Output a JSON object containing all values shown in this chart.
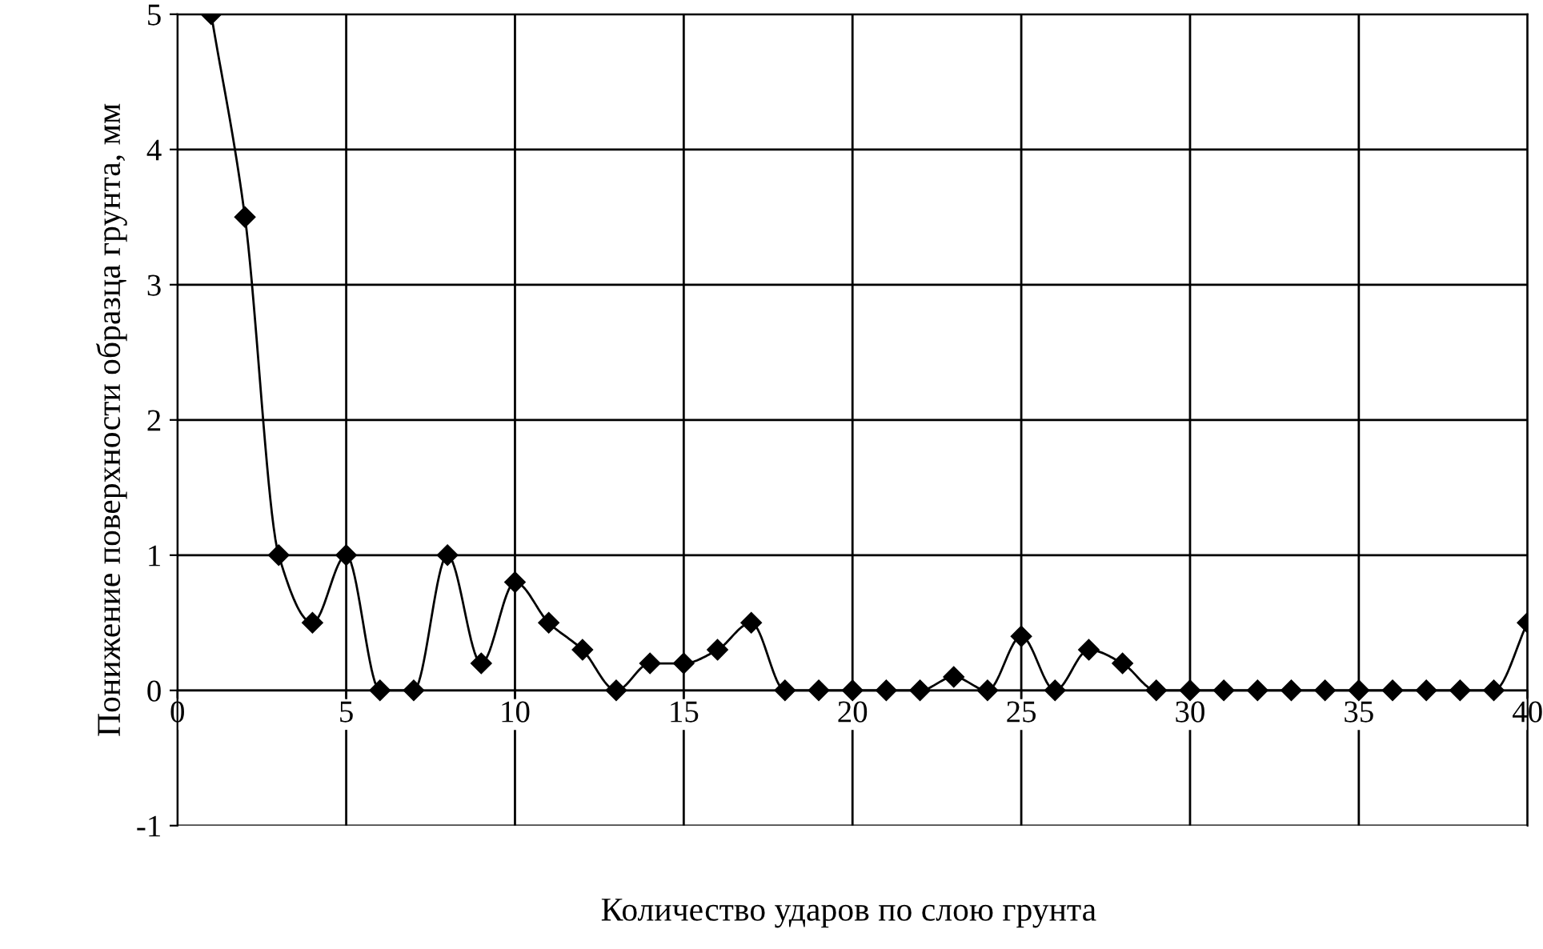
{
  "chart_data": {
    "type": "line",
    "xlabel": "Количество ударов по слою грунта",
    "ylabel": "Понижение поверхности образца грунта, мм",
    "x": [
      1,
      2,
      3,
      4,
      5,
      6,
      7,
      8,
      9,
      10,
      11,
      12,
      13,
      14,
      15,
      16,
      17,
      18,
      19,
      20,
      21,
      22,
      23,
      24,
      25,
      26,
      27,
      28,
      29,
      30,
      31,
      32,
      33,
      34,
      35,
      36,
      37,
      38,
      39,
      40
    ],
    "series": [
      {
        "color": "#000000",
        "values": [
          5,
          3.5,
          1,
          0.5,
          1,
          0,
          0,
          1,
          0.2,
          0.8,
          0.5,
          0.3,
          0,
          0.2,
          0.2,
          0.3,
          0.5,
          0,
          0,
          0,
          0,
          0,
          0.1,
          0,
          0.4,
          0,
          0.3,
          0.2,
          0,
          0,
          0,
          0,
          0,
          0,
          0,
          0,
          0,
          0,
          0,
          0.5
        ]
      }
    ],
    "xlim": [
      0,
      40
    ],
    "xticks": [
      0,
      5,
      10,
      15,
      20,
      25,
      30,
      35,
      40
    ],
    "ylim": [
      -1,
      5
    ],
    "yticks": [
      -1,
      0,
      1,
      2,
      3,
      4,
      5
    ],
    "grid": true,
    "marker": "diamond",
    "line_style": "solid",
    "legend": false
  }
}
